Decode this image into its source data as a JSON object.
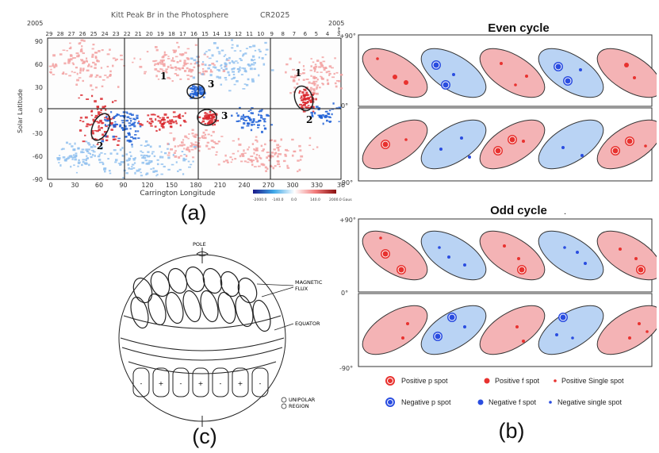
{
  "figure": {
    "caption_a": "(a)",
    "caption_b": "(b)",
    "caption_c": "(c)"
  },
  "panel_a": {
    "title": "Kitt Peak Br in the Photosphere",
    "rotation": "CR2025",
    "year_left": "2005",
    "year_right": "2005",
    "year_right_sub": "t",
    "ylabel": "Solar Latitude",
    "xlabel": "Carrington Longitude",
    "y_ticks": [
      "90",
      "60",
      "30",
      "0",
      "-30",
      "-60",
      "-90"
    ],
    "x_ticks": [
      "0",
      "30",
      "60",
      "90",
      "120",
      "150",
      "180",
      "210",
      "240",
      "270",
      "300",
      "330",
      "36"
    ],
    "top_ticks": [
      "29",
      "28",
      "27",
      "26",
      "25",
      "24",
      "23",
      "22",
      "21",
      "20",
      "19",
      "18",
      "17",
      "16",
      "15",
      "14",
      "13",
      "12",
      "11",
      "10",
      "9",
      "8",
      "7",
      "6",
      "5",
      "4",
      "3"
    ],
    "colorbar_ticks": [
      "-2000.0",
      "-140.0",
      "0.0",
      "140.0",
      "2000.0 Gauss"
    ],
    "region_labels": [
      "1",
      "3",
      "3",
      "1",
      "2",
      "2"
    ],
    "colors": {
      "positive": "#d9262b",
      "negative": "#1d5fd6",
      "neutral": "#ffffff"
    }
  },
  "panel_b": {
    "even_title": "Even cycle",
    "odd_title": "Odd cycle",
    "odd_title_mark": ".",
    "lat_plus": "+90°",
    "lat_zero": "0°",
    "lat_minus": "-90°",
    "legend": {
      "positive_p": "Positive p spot",
      "positive_f": "Positive f spot",
      "positive_single": "Positive Single spot",
      "negative_p": "Negative p spot",
      "negative_f": "Negative f spot",
      "negative_single": "Negative single spot"
    },
    "colors": {
      "pink": "#f4b3b5",
      "blue": "#b9d3f4",
      "red": "#e8322f",
      "dblue": "#2a4de0"
    }
  },
  "panel_c": {
    "pole": "POLE",
    "flux_line1": "MAGNETIC",
    "flux_line2": "FLUX",
    "equator": "EQUATOR",
    "unipolar_line1": "UNIPOLAR",
    "unipolar_line2": "REGION",
    "signs": [
      "-",
      "+",
      "-",
      "+",
      "-",
      "+",
      "-"
    ]
  }
}
